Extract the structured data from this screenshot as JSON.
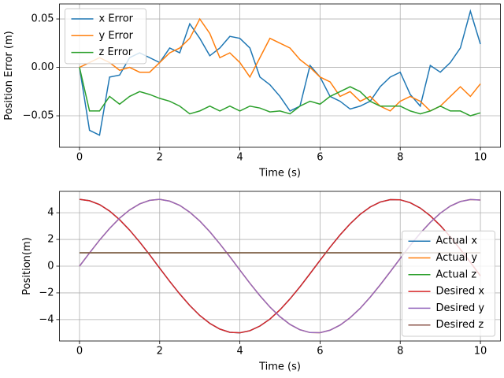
{
  "chart_data": [
    {
      "type": "line",
      "xlabel": "Time (s)",
      "ylabel": "Position Error (m)",
      "x": [
        0,
        0.25,
        0.5,
        0.75,
        1,
        1.25,
        1.5,
        1.75,
        2,
        2.25,
        2.5,
        2.75,
        3,
        3.25,
        3.5,
        3.75,
        4,
        4.25,
        4.5,
        4.75,
        5,
        5.25,
        5.5,
        5.75,
        6,
        6.25,
        6.5,
        6.75,
        7,
        7.25,
        7.5,
        7.75,
        8,
        8.25,
        8.5,
        8.75,
        9,
        9.25,
        9.5,
        9.75,
        10
      ],
      "series": [
        {
          "name": "x Error",
          "color": "#1f77b4",
          "values": [
            0,
            -0.065,
            -0.07,
            -0.01,
            -0.008,
            0.01,
            0.015,
            0.01,
            0.005,
            0.02,
            0.015,
            0.045,
            0.03,
            0.012,
            0.02,
            0.032,
            0.03,
            0.02,
            -0.01,
            -0.018,
            -0.03,
            -0.045,
            -0.04,
            0.002,
            -0.01,
            -0.03,
            -0.035,
            -0.043,
            -0.04,
            -0.035,
            -0.02,
            -0.01,
            -0.005,
            -0.028,
            -0.04,
            0.002,
            -0.005,
            0.005,
            0.02,
            0.058,
            0.024
          ]
        },
        {
          "name": "y Error",
          "color": "#ff7f0e",
          "values": [
            0,
            0.005,
            0.01,
            0.005,
            -0.003,
            0,
            -0.005,
            -0.005,
            0.005,
            0.015,
            0.02,
            0.03,
            0.05,
            0.035,
            0.01,
            0.015,
            0.005,
            -0.01,
            0.01,
            0.03,
            0.025,
            0.02,
            0.008,
            0,
            -0.01,
            -0.015,
            -0.03,
            -0.025,
            -0.035,
            -0.03,
            -0.04,
            -0.045,
            -0.035,
            -0.03,
            -0.035,
            -0.045,
            -0.04,
            -0.03,
            -0.02,
            -0.03,
            -0.017
          ]
        },
        {
          "name": "z Error",
          "color": "#2ca02c",
          "values": [
            0,
            -0.045,
            -0.045,
            -0.03,
            -0.038,
            -0.03,
            -0.025,
            -0.028,
            -0.032,
            -0.035,
            -0.04,
            -0.048,
            -0.045,
            -0.04,
            -0.045,
            -0.04,
            -0.045,
            -0.04,
            -0.042,
            -0.046,
            -0.045,
            -0.048,
            -0.04,
            -0.035,
            -0.038,
            -0.03,
            -0.025,
            -0.02,
            -0.025,
            -0.035,
            -0.04,
            -0.04,
            -0.04,
            -0.045,
            -0.048,
            -0.045,
            -0.04,
            -0.045,
            -0.045,
            -0.05,
            -0.047
          ]
        }
      ],
      "xlim": [
        -0.5,
        10.5
      ],
      "xticks": [
        0,
        2,
        4,
        6,
        8,
        10
      ],
      "ylim": [
        -0.0825,
        0.0655
      ],
      "yticks": [
        {
          "value": -0.05,
          "label": "−0.05"
        },
        {
          "value": 0,
          "label": "0.00"
        },
        0.05
      ],
      "grid": true,
      "legend": "upper left"
    },
    {
      "type": "line",
      "xlabel": "Time (s)",
      "ylabel": "Position(m)",
      "x": [
        0,
        0.25,
        0.5,
        0.75,
        1,
        1.25,
        1.5,
        1.75,
        2,
        2.25,
        2.5,
        2.75,
        3,
        3.25,
        3.5,
        3.75,
        4,
        4.25,
        4.5,
        4.75,
        5,
        5.25,
        5.5,
        5.75,
        6,
        6.25,
        6.5,
        6.75,
        7,
        7.25,
        7.5,
        7.75,
        8,
        8.25,
        8.5,
        8.75,
        9,
        9.25,
        9.5,
        9.75,
        10
      ],
      "series": [
        {
          "name": "Actual x",
          "color": "#1f77b4",
          "values": [
            5,
            4.9,
            4.61,
            4.13,
            3.48,
            2.7,
            1.81,
            0.85,
            -0.15,
            -1.14,
            -2.08,
            -2.94,
            -3.69,
            -4.28,
            -4.71,
            -4.95,
            -4.99,
            -4.83,
            -4.48,
            -3.96,
            -3.27,
            -2.45,
            -1.54,
            -0.56,
            0.44,
            1.42,
            2.34,
            3.17,
            3.88,
            4.43,
            4.8,
            4.98,
            4.97,
            4.75,
            4.35,
            3.77,
            3.04,
            2.2,
            1.26,
            0.29,
            -0.73
          ]
        },
        {
          "name": "Actual y",
          "color": "#ff7f0e",
          "values": [
            0,
            0.99,
            1.95,
            2.82,
            3.59,
            4.21,
            4.66,
            4.93,
            5,
            4.87,
            4.55,
            4.04,
            3.38,
            2.58,
            1.67,
            0.71,
            -0.29,
            -1.28,
            -2.21,
            -3.06,
            -3.78,
            -4.36,
            -4.76,
            -4.97,
            -4.98,
            -4.79,
            -4.41,
            -3.86,
            -3.16,
            -2.32,
            -1.4,
            -0.42,
            0.58,
            1.56,
            2.47,
            3.28,
            3.97,
            4.5,
            4.84,
            4.99,
            4.95
          ]
        },
        {
          "name": "Actual z",
          "color": "#2ca02c",
          "values": [
            1,
            1,
            1,
            1,
            1,
            1,
            1,
            1,
            1,
            1,
            1,
            1,
            1,
            1,
            1,
            1,
            1,
            1,
            1,
            1,
            1,
            1,
            1,
            1,
            1,
            1,
            1,
            1,
            1,
            1,
            1,
            1,
            1,
            1,
            1,
            1,
            1,
            1,
            1,
            1,
            1
          ]
        },
        {
          "name": "Desired x",
          "color": "#d62728",
          "values": [
            5,
            4.9,
            4.61,
            4.13,
            3.48,
            2.7,
            1.81,
            0.85,
            -0.15,
            -1.14,
            -2.08,
            -2.94,
            -3.69,
            -4.28,
            -4.71,
            -4.95,
            -4.99,
            -4.83,
            -4.48,
            -3.96,
            -3.27,
            -2.45,
            -1.54,
            -0.56,
            0.44,
            1.42,
            2.34,
            3.17,
            3.88,
            4.43,
            4.8,
            4.98,
            4.97,
            4.75,
            4.35,
            3.77,
            3.04,
            2.2,
            1.26,
            0.29,
            -0.73
          ]
        },
        {
          "name": "Desired y",
          "color": "#9467bd",
          "values": [
            0,
            0.99,
            1.95,
            2.82,
            3.59,
            4.21,
            4.66,
            4.93,
            5,
            4.87,
            4.55,
            4.04,
            3.38,
            2.58,
            1.67,
            0.71,
            -0.29,
            -1.28,
            -2.21,
            -3.06,
            -3.78,
            -4.36,
            -4.76,
            -4.97,
            -4.98,
            -4.79,
            -4.41,
            -3.86,
            -3.16,
            -2.32,
            -1.4,
            -0.42,
            0.58,
            1.56,
            2.47,
            3.28,
            3.97,
            4.5,
            4.84,
            4.99,
            4.95
          ]
        },
        {
          "name": "Desired z",
          "color": "#8c564b",
          "values": [
            1,
            1,
            1,
            1,
            1,
            1,
            1,
            1,
            1,
            1,
            1,
            1,
            1,
            1,
            1,
            1,
            1,
            1,
            1,
            1,
            1,
            1,
            1,
            1,
            1,
            1,
            1,
            1,
            1,
            1,
            1,
            1,
            1,
            1,
            1,
            1,
            1,
            1,
            1,
            1,
            1
          ]
        }
      ],
      "xlim": [
        -0.5,
        10.5
      ],
      "xticks": [
        0,
        2,
        4,
        6,
        8,
        10
      ],
      "ylim": [
        -5.6,
        5.6
      ],
      "yticks": [
        {
          "value": -4,
          "label": "−4"
        },
        {
          "value": -2,
          "label": "−2"
        },
        0,
        2,
        4
      ],
      "grid": true,
      "legend": "lower right"
    }
  ]
}
